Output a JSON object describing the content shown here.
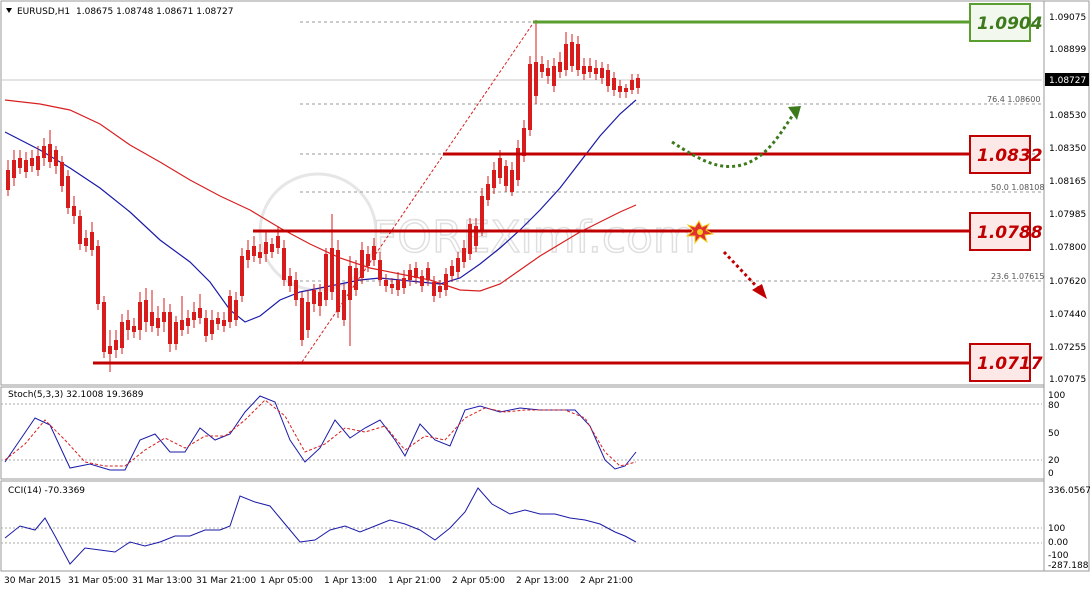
{
  "header": {
    "symbol": "EURUSD,H1",
    "ohlc": "1.08675 1.08748 1.08671 1.08727"
  },
  "price_axis": [
    "1.09075",
    "1.08899",
    "1.08727",
    "1.08530",
    "1.08350",
    "1.08165",
    "1.07985",
    "1.07800",
    "1.07620",
    "1.07440",
    "1.07255",
    "1.07075"
  ],
  "time_axis": [
    "30 Mar 2015",
    "31 Mar 05:00",
    "31 Mar 13:00",
    "31 Mar 21:00",
    "1 Apr 05:00",
    "1 Apr 13:00",
    "1 Apr 21:00",
    "2 Apr 05:00",
    "2 Apr 13:00",
    "2 Apr 21:00"
  ],
  "levels": [
    {
      "label": "1.0904",
      "color": "#5a9e2f"
    },
    {
      "label": "1.0832",
      "color": "#c00000"
    },
    {
      "label": "1.0788",
      "color": "#c00000"
    },
    {
      "label": "1.0717",
      "color": "#c00000"
    }
  ],
  "fib": [
    {
      "label": "76.4  1.08600"
    },
    {
      "label": "50.0  1.08108"
    },
    {
      "label": "23.6  1.07615"
    }
  ],
  "current_price": "1.08727",
  "watermark": "FOREXimf.com",
  "stoch": {
    "label": "Stoch(5,3,3) 32.1008 19.3689",
    "axis": [
      "100",
      "80",
      "50",
      "20",
      "0"
    ]
  },
  "cci": {
    "label": "CCI(14) -70.3369",
    "axis": [
      "336.0567",
      "100",
      "0.00",
      "-100",
      "-287.188"
    ]
  },
  "colors": {
    "bull": "#0b8e3f",
    "bear": "#d81b1b",
    "ma_fast": "#1a1aa8",
    "ma_slow": "#d82020",
    "green_level": "#5a9e2f",
    "red_level": "#c00000"
  },
  "icons": [
    "dropdown-triangle-icon",
    "explosion-icon",
    "curved-up-arrow-icon",
    "dotted-down-arrow-icon"
  ]
}
